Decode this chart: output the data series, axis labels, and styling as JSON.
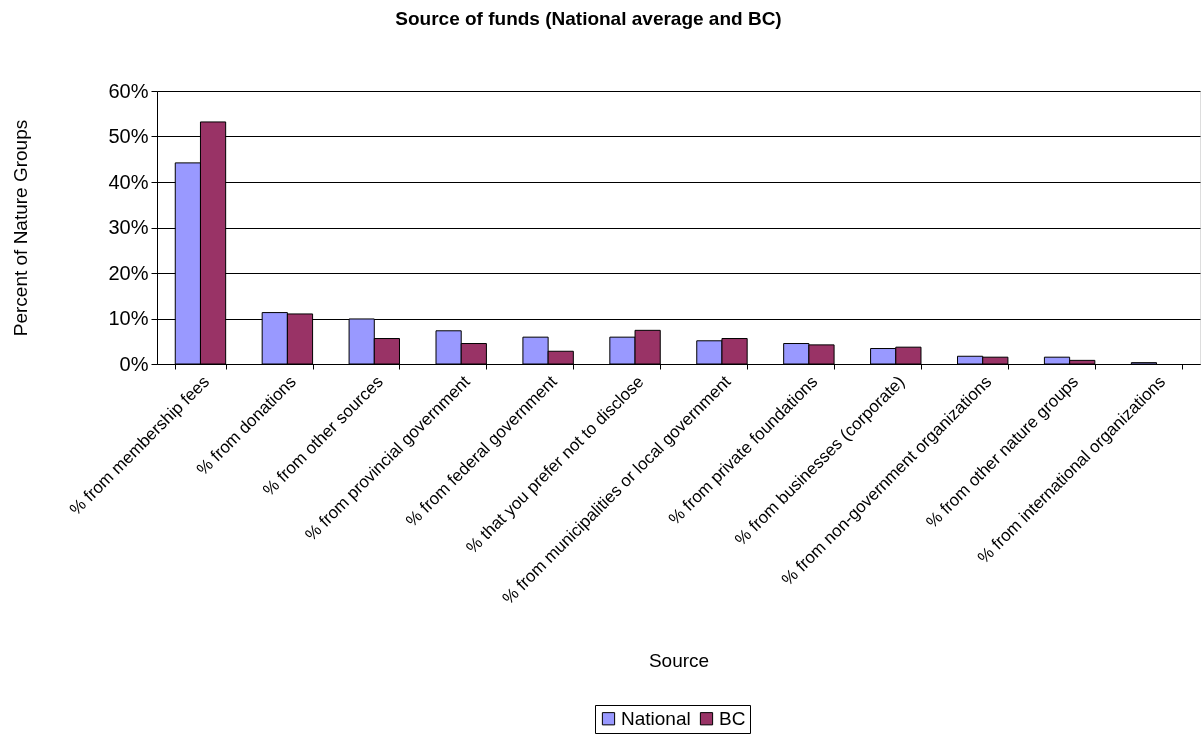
{
  "chart_data": {
    "type": "bar",
    "title": "Source of funds (National average and BC)",
    "xlabel": "Source",
    "ylabel": "Percent of Nature Groups",
    "categories": [
      "% from membership fees",
      "% from donations",
      "% from other sources",
      "% from provincial government",
      "% from federal government",
      "% that you prefer not to disclose",
      "% from municipalities or local government",
      "% from private foundations",
      "% from businesses (corporate)",
      "% from non-government organizations",
      "% from other nature groups",
      "% from international organizations"
    ],
    "series": [
      {
        "name": "National",
        "color": "#9999ff",
        "values": [
          44.2,
          11.3,
          9.9,
          7.3,
          5.9,
          5.9,
          5.1,
          4.5,
          3.4,
          1.7,
          1.5,
          0.3
        ]
      },
      {
        "name": "BC",
        "color": "#993366",
        "values": [
          53.2,
          11.0,
          5.6,
          4.5,
          2.8,
          7.4,
          5.6,
          4.2,
          3.7,
          1.5,
          0.8,
          null
        ]
      }
    ],
    "ylim": [
      0,
      60
    ],
    "yticks": [
      {
        "value": 0,
        "label": "0%"
      },
      {
        "value": 10,
        "label": "10%"
      },
      {
        "value": 20,
        "label": "20%"
      },
      {
        "value": 30,
        "label": "30%"
      },
      {
        "value": 40,
        "label": "40%"
      },
      {
        "value": 50,
        "label": "50%"
      },
      {
        "value": 60,
        "label": "60%"
      }
    ],
    "grid": "y",
    "legend": "bottom"
  }
}
